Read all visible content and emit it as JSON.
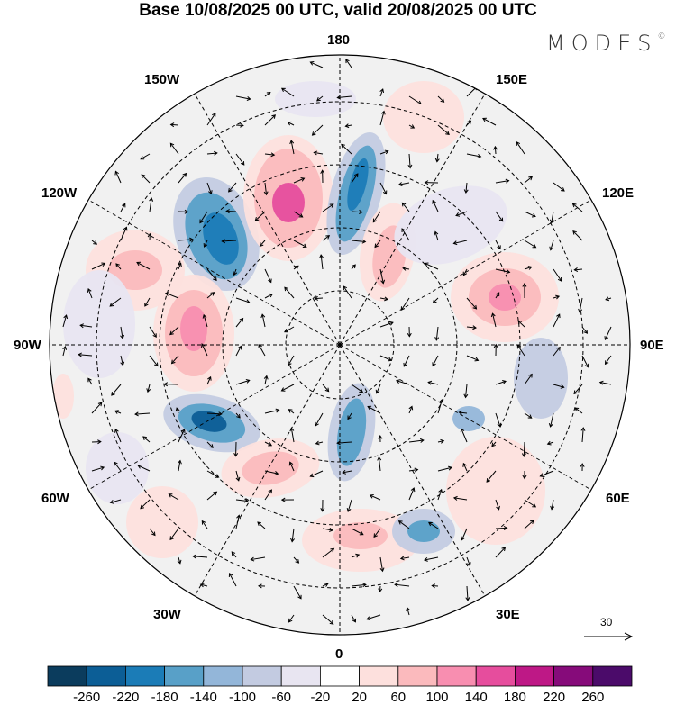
{
  "title": "Base 10/08/2025 00 UTC, valid 20/08/2025 00 UTC",
  "logo": {
    "text": "MODES",
    "mark": "©"
  },
  "map": {
    "projection": "north-polar-stereographic",
    "longitude_labels": {
      "top": "180",
      "bottom": "0",
      "left": "90W",
      "right": "90E",
      "upper_left": "150W",
      "upper_right": "150E",
      "mid_upper_left": "120W",
      "mid_upper_right": "120E",
      "mid_lower_left": "60W",
      "mid_lower_right": "60E",
      "lower_left": "30W",
      "lower_right": "30E"
    },
    "reference_vector": "30"
  },
  "colorbar": {
    "ticks": [
      "-260",
      "-220",
      "-180",
      "-140",
      "-100",
      "-60",
      "-20",
      "20",
      "60",
      "100",
      "140",
      "180",
      "220",
      "260"
    ],
    "colors": [
      "#0b3c5d",
      "#0c5e96",
      "#1b7cb7",
      "#58a0c8",
      "#93b6d9",
      "#c3cbe1",
      "#e8e5f1",
      "#ffffff",
      "#fde0dd",
      "#fbbabd",
      "#f88eb0",
      "#e64d9d",
      "#be1886",
      "#860b7a",
      "#4b0b6a"
    ]
  }
}
